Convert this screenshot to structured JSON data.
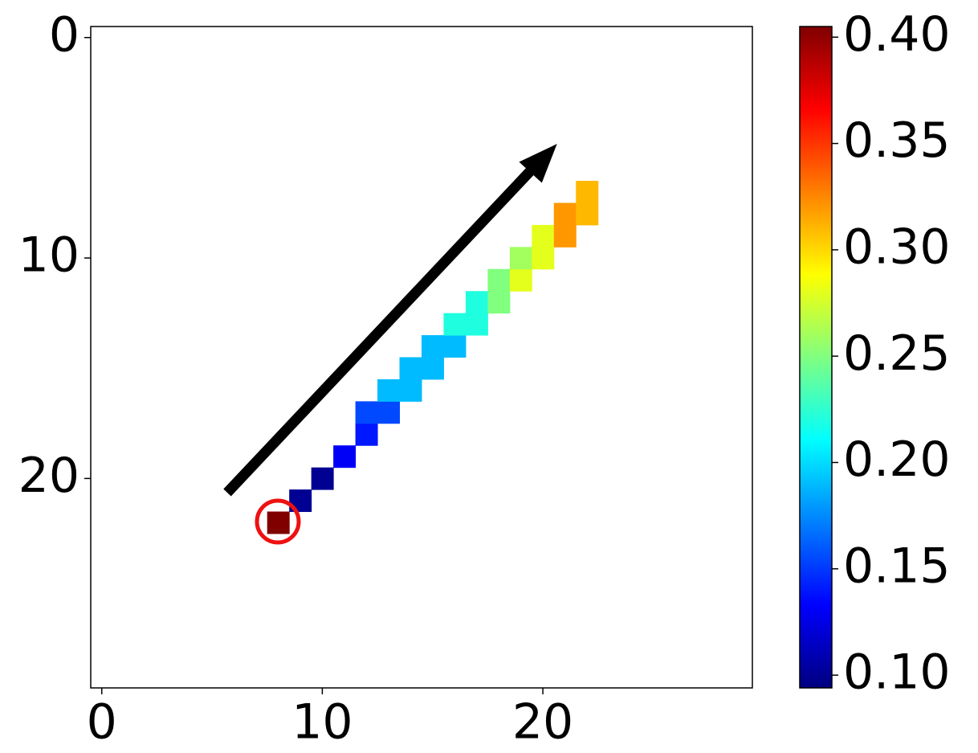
{
  "chart_data": {
    "type": "heatmap",
    "colormap": "jet",
    "x": [
      8,
      9,
      10,
      11,
      12,
      12,
      13,
      13,
      14,
      14,
      15,
      15,
      16,
      16,
      17,
      17,
      18,
      18,
      19,
      19,
      20,
      20,
      21,
      21,
      22,
      22
    ],
    "y": [
      22,
      21,
      20,
      19,
      18,
      17,
      17,
      16,
      16,
      15,
      15,
      14,
      14,
      13,
      13,
      12,
      12,
      11,
      11,
      10,
      10,
      9,
      9,
      8,
      8,
      7
    ],
    "values": [
      0.405,
      0.1,
      0.1,
      0.13,
      0.14,
      0.155,
      0.155,
      0.19,
      0.19,
      0.19,
      0.19,
      0.19,
      0.19,
      0.22,
      0.22,
      0.22,
      0.25,
      0.25,
      0.28,
      0.26,
      0.28,
      0.28,
      0.32,
      0.32,
      0.31,
      0.31
    ],
    "xlim": [
      -0.5,
      29.5
    ],
    "ylim": [
      29.5,
      -0.5
    ],
    "xticks": [
      0,
      10,
      20
    ],
    "yticks": [
      0,
      10,
      20
    ],
    "clim": [
      0.094,
      0.405
    ],
    "cticks": [
      {
        "value": 0.1,
        "label": "0.10"
      },
      0.15,
      {
        "value": 0.2,
        "label": "0.20"
      },
      0.25,
      {
        "value": 0.3,
        "label": "0.30"
      },
      0.35,
      {
        "value": 0.4,
        "label": "0.40"
      }
    ]
  }
}
